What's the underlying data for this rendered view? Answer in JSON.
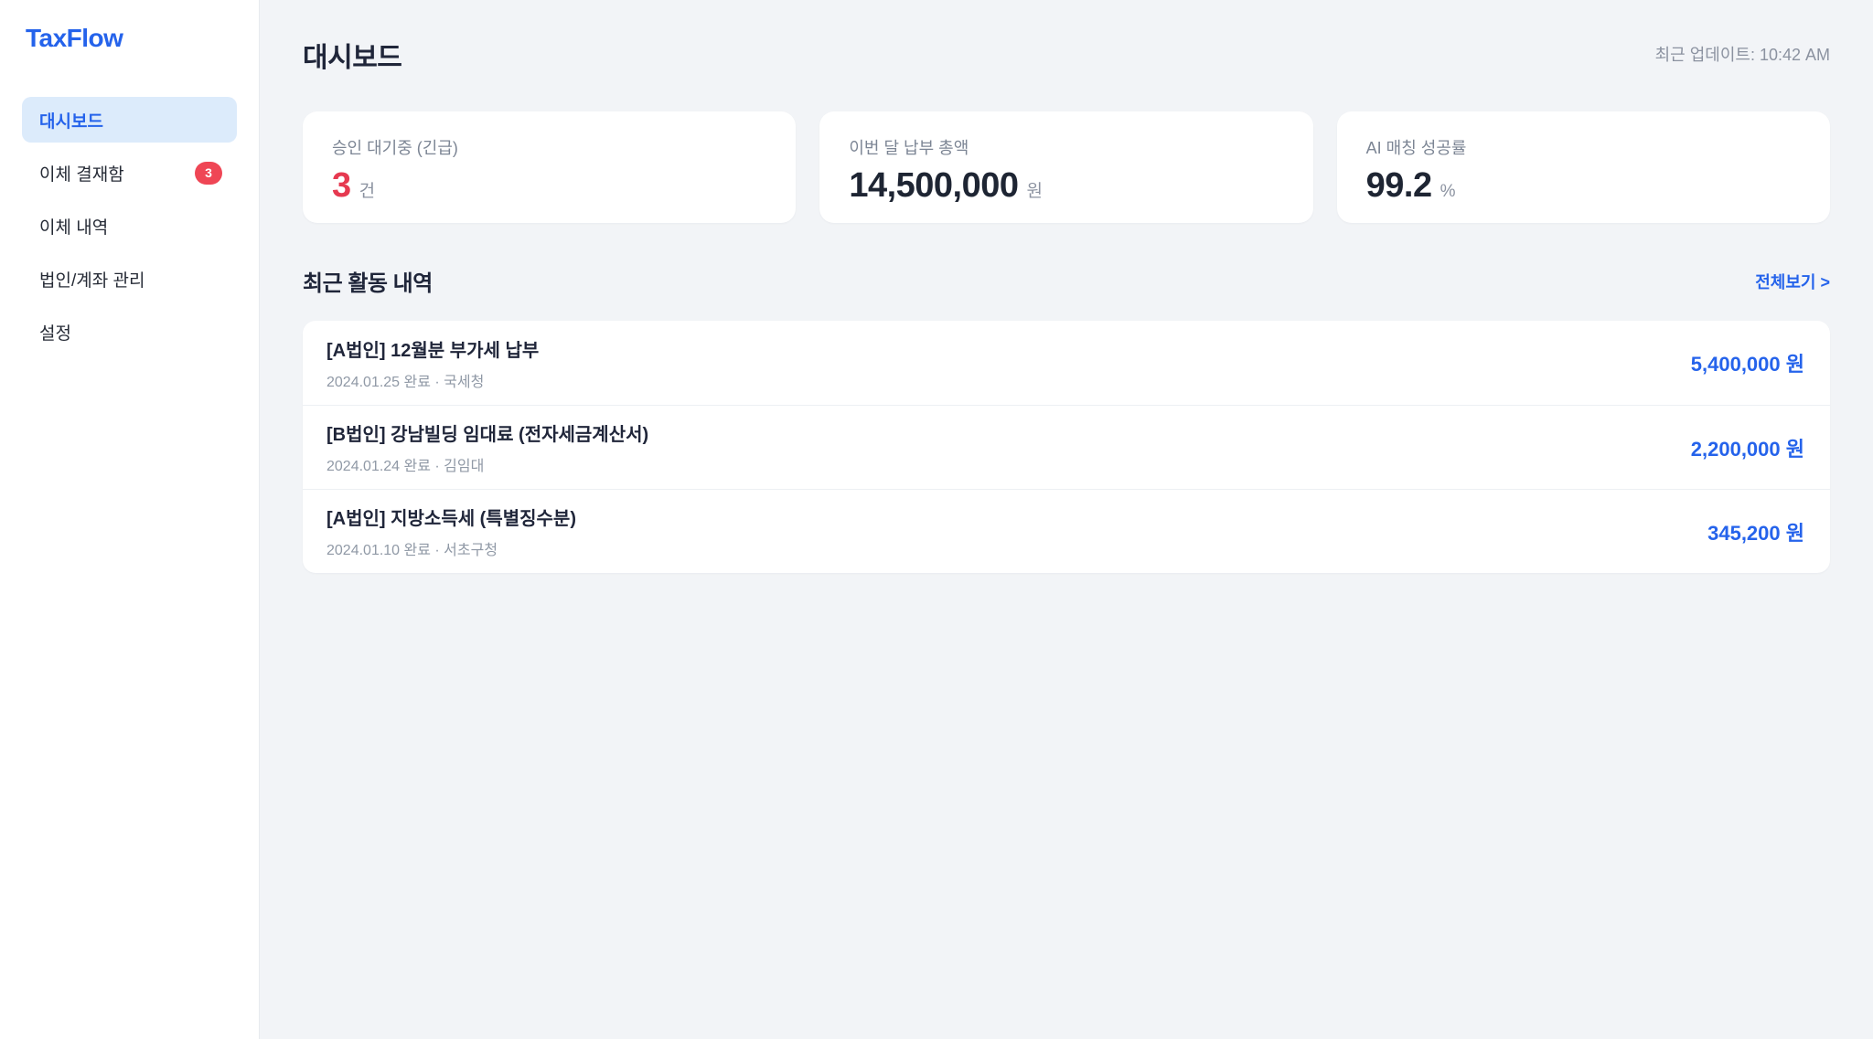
{
  "app": {
    "logo": "TaxFlow"
  },
  "colors": {
    "accent_blue": "#2563eb",
    "active_item_bg": "#dcebfb",
    "badge_red": "#ef4655",
    "stat_red": "#e63950",
    "main_bg": "#f2f4f7",
    "dark_text": "#20263a",
    "muted_text": "#8b92a0"
  },
  "sidebar": {
    "items": [
      {
        "label": "대시보드",
        "active": true
      },
      {
        "label": "이체 결재함",
        "badge": "3"
      },
      {
        "label": "이체 내역"
      },
      {
        "label": "법인/계좌 관리"
      },
      {
        "label": "설정"
      }
    ]
  },
  "header": {
    "title": "대시보드",
    "last_updated": "최근 업데이트: 10:42 AM"
  },
  "stats": [
    {
      "label": "승인 대기중 (긴급)",
      "value": "3",
      "unit": "건"
    },
    {
      "label": "이번 달 납부 총액",
      "value": "14,500,000",
      "unit": "원"
    },
    {
      "label": "AI 매칭 성공률",
      "value": "99.2",
      "unit": "%"
    }
  ],
  "activity": {
    "title": "최근 활동 내역",
    "view_all": "전체보기 >",
    "items": [
      {
        "title": "[A법인] 12월분 부가세 납부",
        "meta": "2024.01.25 완료 · 국세청",
        "amount": "5,400,000 원"
      },
      {
        "title": "[B법인] 강남빌딩 임대료 (전자세금계산서)",
        "meta": "2024.01.24 완료 · 김임대",
        "amount": "2,200,000 원"
      },
      {
        "title": "[A법인] 지방소득세 (특별징수분)",
        "meta": "2024.01.10 완료 · 서초구청",
        "amount": "345,200 원"
      }
    ]
  }
}
